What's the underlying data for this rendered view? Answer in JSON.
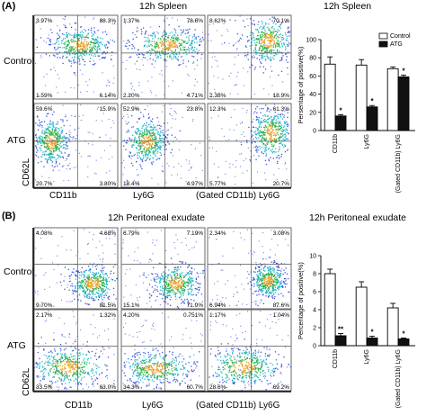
{
  "panelA": {
    "label": "(A)",
    "title": "12h  Spleen",
    "chart_title": "12h Spleen",
    "row_labels": [
      "Control",
      "ATG"
    ],
    "y_axis_label": "CD62L",
    "x_axis_labels": [
      "CD11b",
      "Ly6G",
      "(Gated CD11b) Ly6G"
    ],
    "quadrants": [
      [
        [
          "3.97%",
          "88.3%",
          "1.59%",
          "6.14%"
        ],
        [
          "1.37%",
          "78.6%",
          "2.20%",
          "4.71%"
        ],
        [
          "8.62%",
          "70.1%",
          "2.38%",
          "18.9%"
        ]
      ],
      [
        [
          "59.6%",
          "15.9%",
          "20.7%",
          "3.80%"
        ],
        [
          "52.9%",
          "23.8%",
          "18.4%",
          "4.97%"
        ],
        [
          "12.3%",
          "61.3%",
          "5.77%",
          "20.7%"
        ]
      ]
    ]
  },
  "panelB": {
    "label": "(B)",
    "title": "12h Peritoneal exudate",
    "chart_title": "12h Peritoneal exudate",
    "row_labels": [
      "Control",
      "ATG"
    ],
    "y_axis_label": "CD62L",
    "x_axis_labels": [
      "CD11b",
      "Ly6G",
      "(Gated CD11b) Ly6G"
    ],
    "quadrants": [
      [
        [
          "4.08%",
          "4.68%",
          "9.70%",
          "81.5%"
        ],
        [
          "6.79%",
          "7.19%",
          "15.1%",
          "71.0%"
        ],
        [
          "2.34%",
          "3.08%",
          "6.94%",
          "87.6%"
        ]
      ],
      [
        [
          "2.17%",
          "1.32%",
          "33.5%",
          "63.0%"
        ],
        [
          "4.20%",
          "0.751%",
          "34.3%",
          "60.7%"
        ],
        [
          "1.17%",
          "1.04%",
          "28.6%",
          "69.2%"
        ]
      ]
    ]
  },
  "chart_data": [
    {
      "type": "bar",
      "title": "12h Spleen",
      "ylabel": "Persentage of positive(%)",
      "categories": [
        "CD11b",
        "Ly6G",
        "(Gated CD11b) Ly6G"
      ],
      "ylim": [
        0,
        100
      ],
      "yticks": [
        "0",
        "20",
        "40",
        "60",
        "80",
        "100"
      ],
      "series": [
        {
          "name": "Control",
          "values": [
            73,
            72,
            68
          ],
          "errors": [
            8,
            6,
            2
          ],
          "color": "#ffffff"
        },
        {
          "name": "ATG",
          "values": [
            16,
            26,
            59
          ],
          "errors": [
            1.5,
            1.5,
            2
          ],
          "color": "#111111"
        }
      ],
      "annotations": [
        "*",
        "*",
        "*"
      ],
      "legend_placement": "top-right"
    },
    {
      "type": "bar",
      "title": "12h Peritoneal exudate",
      "ylabel": "Percentage of positive(%)",
      "categories": [
        "CD11b",
        "Ly6G",
        "(Gated CD11b) Ly6G"
      ],
      "ylim": [
        0,
        10
      ],
      "yticks": [
        "0",
        "2",
        "4",
        "6",
        "8",
        "10"
      ],
      "series": [
        {
          "values": [
            8.0,
            6.5,
            4.2
          ],
          "errors": [
            0.5,
            0.6,
            0.5
          ],
          "color": "#ffffff"
        },
        {
          "values": [
            1.1,
            0.85,
            0.75
          ],
          "errors": [
            0.25,
            0.2,
            0.1
          ],
          "color": "#111111"
        }
      ],
      "annotations": [
        "**",
        "*",
        "*"
      ]
    }
  ]
}
